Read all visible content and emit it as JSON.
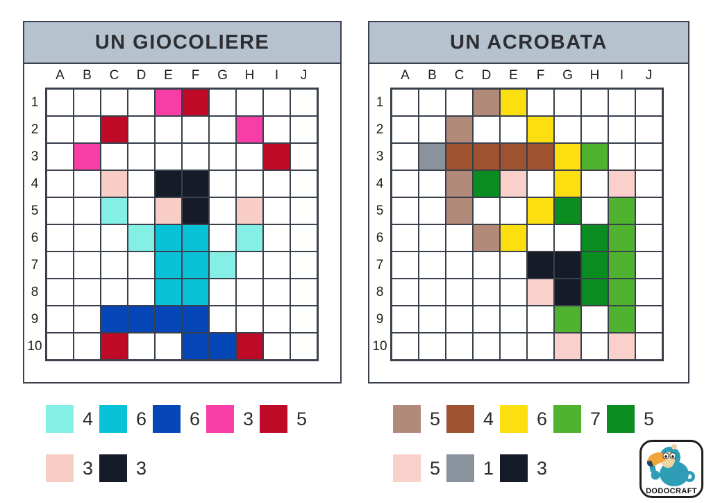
{
  "palette": {
    "aqua": "#84efe4",
    "cyan": "#0ac2d7",
    "blue": "#0647b8",
    "magenta": "#f93da6",
    "crimson": "#bf0a27",
    "peach": "#f8cdc5",
    "ink": "#151c27",
    "tan": "#b28a7a",
    "brown": "#9e5230",
    "yellow": "#fcdf10",
    "grass": "#4fb32f",
    "green": "#0a8c21",
    "blush": "#f9d0ca",
    "gray": "#8a939d"
  },
  "header_bg": "#b6c3ce",
  "panels": [
    {
      "title": "UN GIOCOLIERE",
      "columns": [
        "A",
        "B",
        "C",
        "D",
        "E",
        "F",
        "G",
        "H",
        "I",
        "J"
      ],
      "rows": [
        "1",
        "2",
        "3",
        "4",
        "5",
        "6",
        "7",
        "8",
        "9",
        "10"
      ],
      "grid": [
        [
          "",
          "",
          "",
          "",
          "magenta",
          "crimson",
          "",
          "",
          "",
          ""
        ],
        [
          "",
          "",
          "crimson",
          "",
          "",
          "",
          "",
          "magenta",
          "",
          ""
        ],
        [
          "",
          "magenta",
          "",
          "",
          "",
          "",
          "",
          "",
          "crimson",
          ""
        ],
        [
          "",
          "",
          "peach",
          "",
          "ink",
          "ink",
          "",
          "",
          "",
          ""
        ],
        [
          "",
          "",
          "aqua",
          "",
          "peach",
          "ink",
          "",
          "peach",
          "",
          ""
        ],
        [
          "",
          "",
          "",
          "aqua",
          "cyan",
          "cyan",
          "",
          "aqua",
          "",
          ""
        ],
        [
          "",
          "",
          "",
          "",
          "cyan",
          "cyan",
          "aqua",
          "",
          "",
          ""
        ],
        [
          "",
          "",
          "",
          "",
          "cyan",
          "cyan",
          "",
          "",
          "",
          ""
        ],
        [
          "",
          "",
          "blue",
          "blue",
          "blue",
          "blue",
          "",
          "",
          "",
          ""
        ],
        [
          "",
          "",
          "crimson",
          "",
          "",
          "blue",
          "blue",
          "crimson",
          "",
          ""
        ]
      ],
      "legend": [
        [
          {
            "color": "aqua",
            "count": "4"
          },
          {
            "color": "cyan",
            "count": "6"
          },
          {
            "color": "blue",
            "count": "6"
          },
          {
            "color": "magenta",
            "count": "3"
          },
          {
            "color": "crimson",
            "count": "5"
          }
        ],
        [
          {
            "color": "peach",
            "count": "3"
          },
          {
            "color": "ink",
            "count": "3"
          }
        ]
      ]
    },
    {
      "title": "UN ACROBATA",
      "columns": [
        "A",
        "B",
        "C",
        "D",
        "E",
        "F",
        "G",
        "H",
        "I",
        "J"
      ],
      "rows": [
        "1",
        "2",
        "3",
        "4",
        "5",
        "6",
        "7",
        "8",
        "9",
        "10"
      ],
      "grid": [
        [
          "",
          "",
          "",
          "tan",
          "yellow",
          "",
          "",
          "",
          "",
          ""
        ],
        [
          "",
          "",
          "tan",
          "",
          "",
          "yellow",
          "",
          "",
          "",
          ""
        ],
        [
          "",
          "gray",
          "brown",
          "brown",
          "brown",
          "brown",
          "yellow",
          "grass",
          "",
          ""
        ],
        [
          "",
          "",
          "tan",
          "green",
          "blush",
          "",
          "yellow",
          "",
          "blush",
          ""
        ],
        [
          "",
          "",
          "tan",
          "",
          "",
          "yellow",
          "green",
          "",
          "grass",
          ""
        ],
        [
          "",
          "",
          "",
          "tan",
          "yellow",
          "",
          "",
          "green",
          "grass",
          ""
        ],
        [
          "",
          "",
          "",
          "",
          "",
          "ink",
          "ink",
          "green",
          "grass",
          ""
        ],
        [
          "",
          "",
          "",
          "",
          "",
          "blush",
          "ink",
          "green",
          "grass",
          ""
        ],
        [
          "",
          "",
          "",
          "",
          "",
          "",
          "grass",
          "",
          "grass",
          ""
        ],
        [
          "",
          "",
          "",
          "",
          "",
          "",
          "blush",
          "",
          "blush",
          ""
        ]
      ],
      "legend": [
        [
          {
            "color": "tan",
            "count": "5"
          },
          {
            "color": "brown",
            "count": "4"
          },
          {
            "color": "yellow",
            "count": "6"
          },
          {
            "color": "grass",
            "count": "7"
          },
          {
            "color": "green",
            "count": "5"
          }
        ],
        [
          {
            "color": "blush",
            "count": "5"
          },
          {
            "color": "gray",
            "count": "1"
          },
          {
            "color": "ink",
            "count": "3"
          }
        ]
      ]
    }
  ],
  "logo": {
    "text": "DODOCRAFT"
  }
}
